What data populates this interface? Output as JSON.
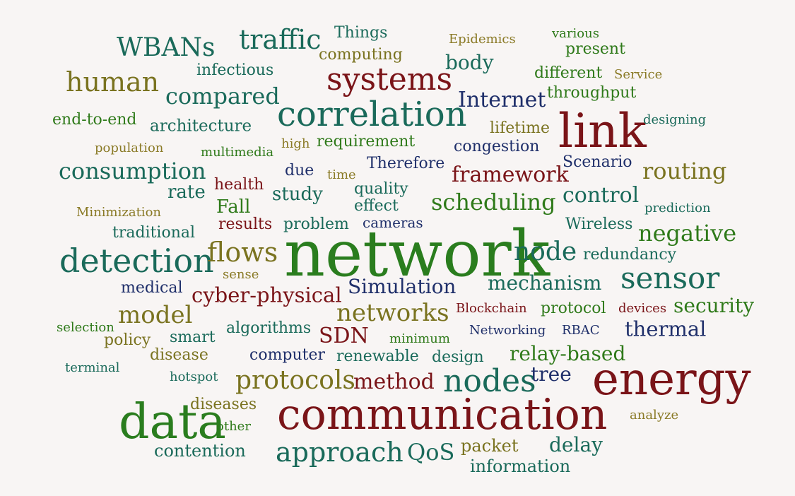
{
  "palette": {
    "background": "#f8f5f4",
    "dark_red": "#7a1418",
    "dark_teal": "#1a6a5a",
    "teal": "#1f7a5e",
    "green": "#2f7a1a",
    "bright_green": "#2a7d1e",
    "olive": "#7a7320",
    "olive_light": "#8a7a26",
    "navy": "#1f2f6a"
  },
  "words": [
    {
      "text": "network"
    },
    {
      "text": "communication"
    },
    {
      "text": "energy"
    },
    {
      "text": "data"
    },
    {
      "text": "link"
    },
    {
      "text": "correlation"
    },
    {
      "text": "detection"
    },
    {
      "text": "systems"
    },
    {
      "text": "nodes"
    },
    {
      "text": "traffic"
    },
    {
      "text": "human"
    },
    {
      "text": "sensor"
    },
    {
      "text": "approach"
    },
    {
      "text": "protocols"
    },
    {
      "text": "flows"
    },
    {
      "text": "networks"
    },
    {
      "text": "model"
    },
    {
      "text": "WBANs"
    },
    {
      "text": "compared"
    },
    {
      "text": "consumption"
    },
    {
      "text": "cyber-physical"
    },
    {
      "text": "node"
    },
    {
      "text": "scheduling"
    },
    {
      "text": "negative"
    },
    {
      "text": "routing"
    },
    {
      "text": "framework"
    },
    {
      "text": "control"
    },
    {
      "text": "method"
    },
    {
      "text": "SDN"
    },
    {
      "text": "mechanism"
    },
    {
      "text": "Internet"
    },
    {
      "text": "QoS"
    },
    {
      "text": "thermal"
    },
    {
      "text": "security"
    },
    {
      "text": "relay-based"
    },
    {
      "text": "delay"
    },
    {
      "text": "Simulation"
    },
    {
      "text": "body"
    },
    {
      "text": "tree"
    },
    {
      "text": "study"
    },
    {
      "text": "Fall"
    },
    {
      "text": "rate"
    },
    {
      "text": "contention"
    },
    {
      "text": "packet"
    },
    {
      "text": "information"
    },
    {
      "text": "architecture"
    },
    {
      "text": "end-to-end"
    },
    {
      "text": "Things"
    },
    {
      "text": "computing"
    },
    {
      "text": "present"
    },
    {
      "text": "different"
    },
    {
      "text": "throughput"
    },
    {
      "text": "lifetime"
    },
    {
      "text": "congestion"
    },
    {
      "text": "Therefore"
    },
    {
      "text": "requirement"
    },
    {
      "text": "health"
    },
    {
      "text": "quality"
    },
    {
      "text": "effect"
    },
    {
      "text": "redundancy"
    },
    {
      "text": "protocol"
    },
    {
      "text": "renewable"
    },
    {
      "text": "design"
    },
    {
      "text": "computer"
    },
    {
      "text": "algorithms"
    },
    {
      "text": "smart"
    },
    {
      "text": "disease"
    },
    {
      "text": "diseases"
    },
    {
      "text": "problem"
    },
    {
      "text": "results"
    },
    {
      "text": "traditional"
    },
    {
      "text": "Wireless"
    },
    {
      "text": "Scenario"
    },
    {
      "text": "medical"
    },
    {
      "text": "policy"
    },
    {
      "text": "infectious"
    },
    {
      "text": "due"
    },
    {
      "text": "cameras"
    },
    {
      "text": "Epidemics"
    },
    {
      "text": "various"
    },
    {
      "text": "Service"
    },
    {
      "text": "designing"
    },
    {
      "text": "population"
    },
    {
      "text": "multimedia"
    },
    {
      "text": "high"
    },
    {
      "text": "time"
    },
    {
      "text": "Minimization"
    },
    {
      "text": "prediction"
    },
    {
      "text": "sense"
    },
    {
      "text": "Blockchain"
    },
    {
      "text": "devices"
    },
    {
      "text": "selection"
    },
    {
      "text": "minimum"
    },
    {
      "text": "Networking"
    },
    {
      "text": "RBAC"
    },
    {
      "text": "terminal"
    },
    {
      "text": "hotspot"
    },
    {
      "text": "other"
    },
    {
      "text": "analyze"
    }
  ]
}
